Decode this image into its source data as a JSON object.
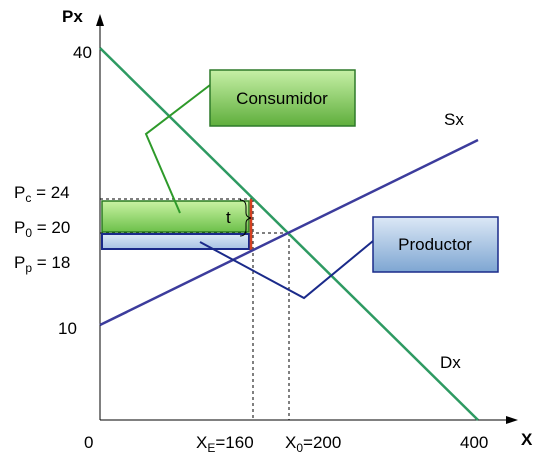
{
  "axes": {
    "y_title": "Px",
    "x_title": "X",
    "origin": "0",
    "y_tick_40": "40",
    "y_tick_10": "10",
    "x_tick_400": "400"
  },
  "prices": {
    "pc": {
      "sym": "P",
      "sub": "c",
      "eq": " = 24"
    },
    "p0": {
      "sym": "P",
      "sub": "0",
      "eq": " = 20"
    },
    "pp": {
      "sym": "P",
      "sub": "p",
      "eq": " = 18"
    }
  },
  "quantities": {
    "xe": {
      "sym": "X",
      "sub": "E",
      "eq": "=160"
    },
    "x0": {
      "sym": "X",
      "sub": "0",
      "eq": "=200"
    }
  },
  "curves": {
    "supply": "Sx",
    "demand": "Dx"
  },
  "tax_label": "t",
  "callouts": {
    "consumer": {
      "label": "Consumidor",
      "color": "#7fc85a"
    },
    "producer": {
      "label": "Productor",
      "color": "#8fb4d8"
    }
  },
  "colors": {
    "demand": "#2e9a62",
    "supply": "#3c3c9c",
    "consumer_fill": "#9be06c",
    "producer_fill": "#bcd4ee",
    "tax_line": "#d64020"
  }
}
